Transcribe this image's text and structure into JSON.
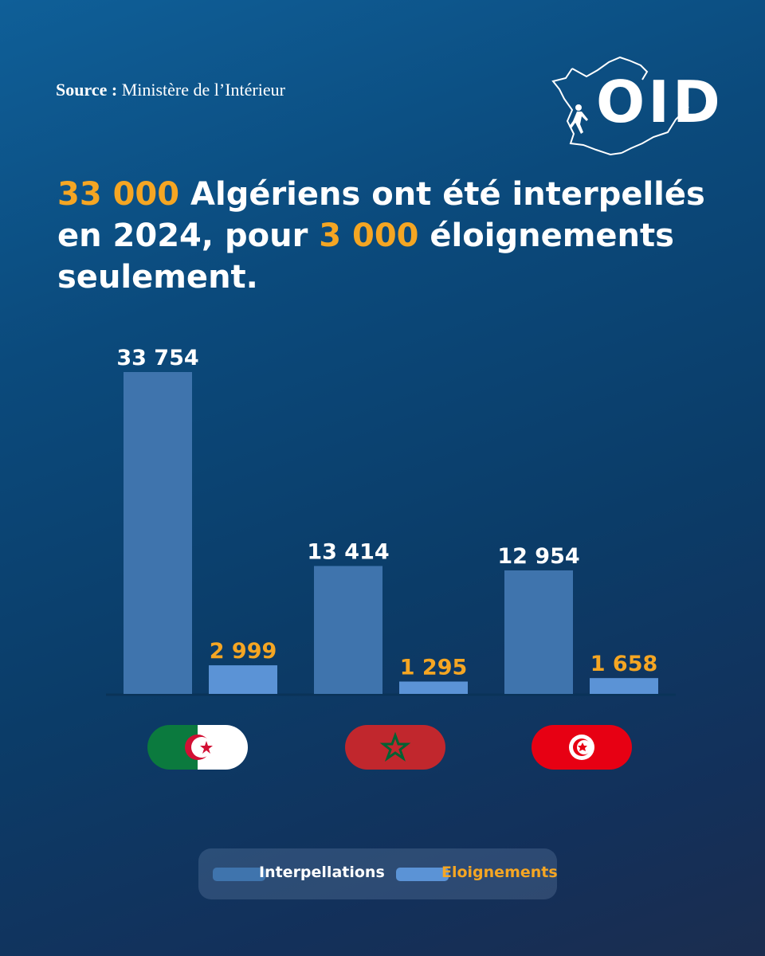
{
  "source": {
    "label": "Source :",
    "value": "Ministère de l’Intérieur"
  },
  "logo": {
    "text": "OID"
  },
  "headline": {
    "n1": "33 000",
    "t1": " Algériens ont été interpellés en 2024, pour ",
    "n2": "3 000",
    "t2": " éloignements seulement."
  },
  "colors": {
    "accent": "#f5a623",
    "interpellations": "#3f74ad",
    "eloignements": "#5b93d6"
  },
  "chart_data": {
    "type": "bar",
    "categories": [
      "Algérie",
      "Maroc",
      "Tunisie"
    ],
    "series": [
      {
        "name": "Interpellations",
        "values": [
          33754,
          13414,
          12954
        ],
        "labels": [
          "33 754",
          "13 414",
          "12 954"
        ]
      },
      {
        "name": "Eloignements",
        "values": [
          2999,
          1295,
          1658
        ],
        "labels": [
          "2 999",
          "1 295",
          "1 658"
        ]
      }
    ],
    "ylim": [
      0,
      33754
    ],
    "legend": "bottom",
    "grid": false
  },
  "flags": [
    "algeria-flag",
    "morocco-flag",
    "tunisia-flag"
  ],
  "legend": {
    "item1": "Interpellations",
    "item2": "Eloignements"
  }
}
